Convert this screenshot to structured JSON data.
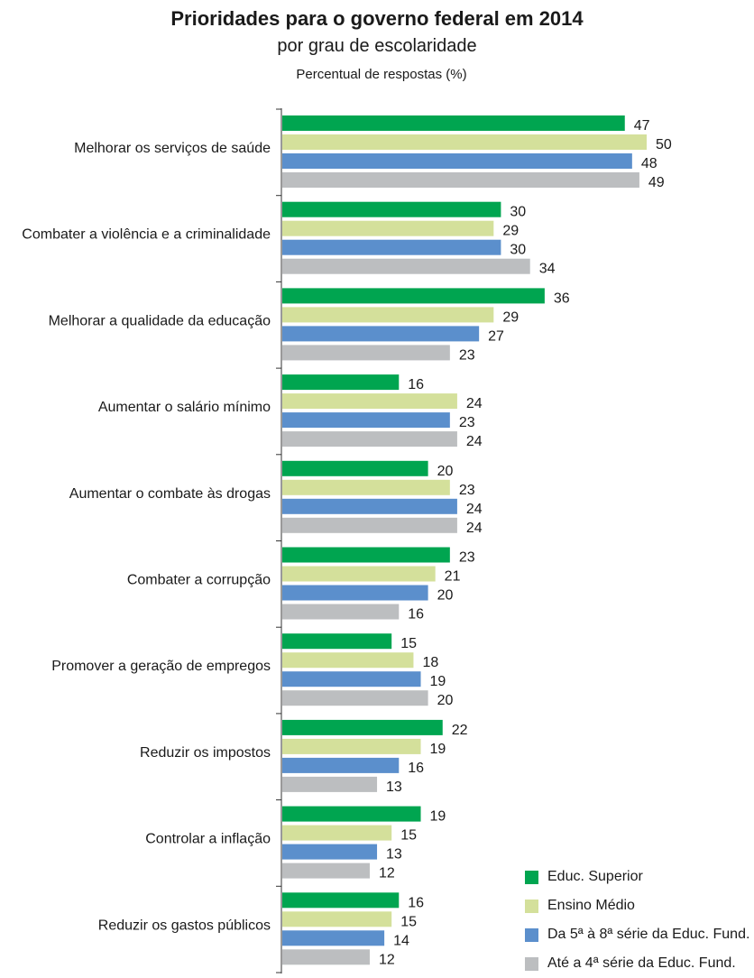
{
  "chart_data": {
    "type": "bar",
    "orientation": "horizontal",
    "title": "Prioridades para o governo federal em 2014",
    "subtitle": "por grau de escolaridade",
    "unit_label": "Percentual de respostas (%)",
    "categories": [
      "Melhorar os serviços de saúde",
      "Combater a violência e a criminalidade",
      "Melhorar a qualidade da educação",
      "Aumentar o salário mínimo",
      "Aumentar o combate às drogas",
      "Combater a corrupção",
      "Promover a geração de empregos",
      "Reduzir os impostos",
      "Controlar a inflação",
      "Reduzir os gastos públicos"
    ],
    "series": [
      {
        "name": "Educ. Superior",
        "color": "#00a550",
        "values": [
          47,
          30,
          36,
          16,
          20,
          23,
          15,
          22,
          19,
          16
        ]
      },
      {
        "name": "Ensino Médio",
        "color": "#d4e09b",
        "values": [
          50,
          29,
          29,
          24,
          23,
          21,
          18,
          19,
          15,
          15
        ]
      },
      {
        "name": "Da 5ª à 8ª série da Educ. Fund.",
        "color": "#5b8fcc",
        "values": [
          48,
          30,
          27,
          23,
          24,
          20,
          19,
          16,
          13,
          14
        ]
      },
      {
        "name": "Até a 4ª série da Educ. Fund.",
        "color": "#bcbec0",
        "values": [
          49,
          34,
          23,
          24,
          24,
          16,
          20,
          13,
          12,
          12
        ]
      }
    ],
    "legend_position": "bottom-right",
    "grid": false
  }
}
